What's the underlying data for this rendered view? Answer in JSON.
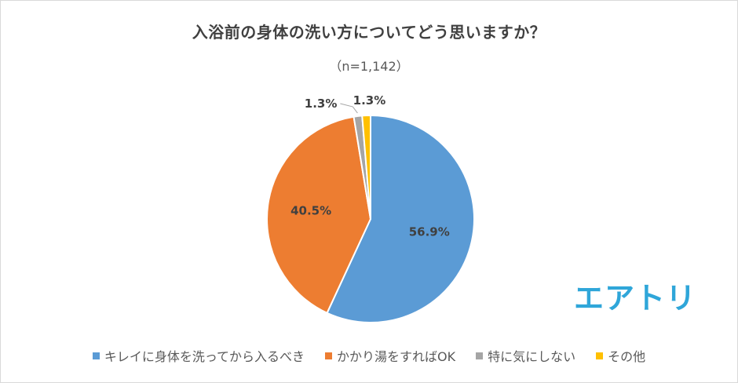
{
  "chart_data": {
    "type": "pie",
    "title": "入浴前の身体の洗い方についてどう思いますか？",
    "subtitle": "（n=1,142）",
    "categories": [
      "キレイに身体を洗ってから入るべき",
      "かかり湯をすればOK",
      "特に気にしない",
      "その他"
    ],
    "values": [
      56.9,
      40.5,
      1.3,
      1.3
    ],
    "labels": [
      "56.9%",
      "40.5%",
      "1.3%",
      "1.3%"
    ],
    "colors": [
      "#5b9bd5",
      "#ed7d31",
      "#a5a5a5",
      "#ffc000"
    ],
    "legend_position": "bottom"
  },
  "logo": {
    "text": "エアトリ",
    "color": "#2fa6d9"
  }
}
